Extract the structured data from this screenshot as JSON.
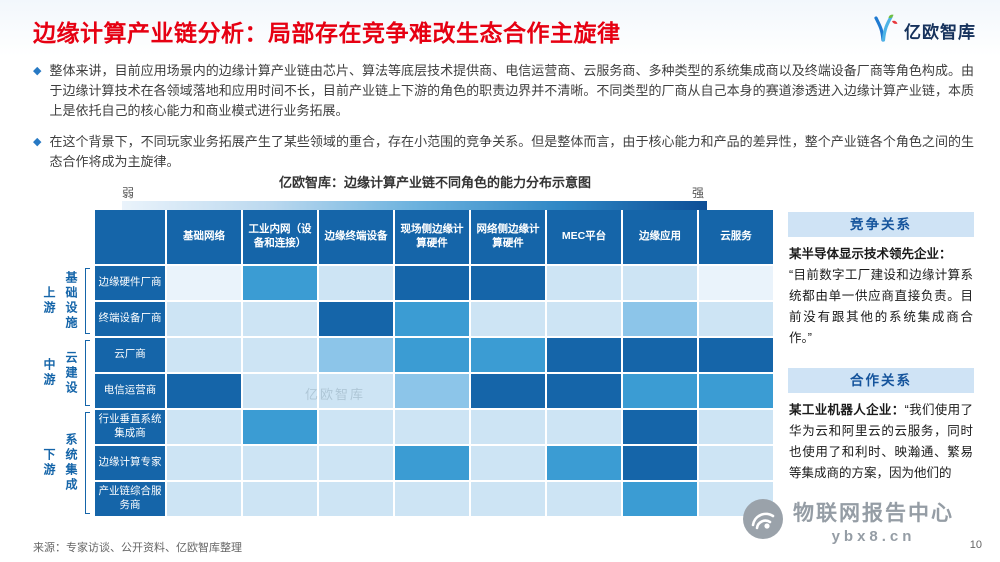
{
  "header": {
    "title": "边缘计算产业链分析：局部存在竞争难改生态合作主旋律",
    "logo_text": "亿欧智库"
  },
  "bullets": [
    {
      "text": "整体来讲，目前应用场景内的边缘计算产业链由芯片、算法等底层技术提供商、电信运营商、云服务商、多种类型的系统集成商以及终端设备厂商等角色构成。由于边缘计算技术在各领域落地和应用时间不长，目前产业链上下游的角色的职责边界并不清晰。不同类型的厂商从自己本身的赛道渗透进入边缘计算产业链，本质上是依托自己的核心能力和商业模式进行业务拓展。"
    },
    {
      "text": "在这个背景下，不同玩家业务拓展产生了某些领域的重合，存在小范围的竞争关系。但是整体而言，由于核心能力和产品的差异性，整个产业链各个角色之间的生态合作将成为主旋律。"
    }
  ],
  "chart": {
    "title": "亿欧智库：边缘计算产业链不同角色的能力分布示意图",
    "legend_weak": "弱",
    "legend_strong": "强",
    "inline_watermark": "亿欧智库"
  },
  "chart_data": {
    "type": "heatmap",
    "title": "亿欧智库：边缘计算产业链不同角色的能力分布示意图",
    "legend": {
      "left_label": "弱",
      "right_label": "强",
      "meaning": "颜色由浅到深表示能力由弱到强"
    },
    "columns": [
      "基础网络",
      "工业内网（设备和连接）",
      "边缘终端设备",
      "现场侧边缘计算硬件",
      "网络侧边缘计算硬件",
      "MEC平台",
      "边缘应用",
      "云服务"
    ],
    "rows": [
      "边缘硬件厂商",
      "终端设备厂商",
      "云厂商",
      "电信运营商",
      "行业垂直系统集成商",
      "边缘计算专家",
      "产业链综合服务商"
    ],
    "row_groups": [
      {
        "stage": "上游",
        "category": "基础设施",
        "rows": [
          "边缘硬件厂商",
          "终端设备厂商"
        ]
      },
      {
        "stage": "中游",
        "category": "云建设",
        "rows": [
          "云厂商",
          "电信运营商"
        ]
      },
      {
        "stage": "下游",
        "category": "系统集成",
        "rows": [
          "行业垂直系统集成商",
          "边缘计算专家",
          "产业链综合服务商"
        ]
      }
    ],
    "values": [
      [
        0,
        3,
        1,
        4,
        4,
        1,
        1,
        0
      ],
      [
        1,
        1,
        4,
        3,
        1,
        1,
        2,
        1
      ],
      [
        1,
        1,
        2,
        3,
        3,
        4,
        4,
        4
      ],
      [
        4,
        1,
        1,
        2,
        4,
        4,
        3,
        3
      ],
      [
        1,
        3,
        1,
        1,
        1,
        1,
        4,
        1
      ],
      [
        1,
        1,
        1,
        3,
        1,
        3,
        4,
        1
      ],
      [
        1,
        1,
        1,
        1,
        1,
        1,
        3,
        1
      ]
    ],
    "level_colors": [
      "#eaf3fb",
      "#cde4f4",
      "#8cc5e9",
      "#3b9cd3",
      "#1565a9"
    ]
  },
  "panels": [
    {
      "title": "竞争关系",
      "lead": "某半导体显示技术领先企业：",
      "quote": "“目前数字工厂建设和边缘计算系统都由单一供应商直接负责。目前没有跟其他的系统集成商合作。”"
    },
    {
      "title": "合作关系",
      "lead": "某工业机器人企业：",
      "quote": "“我们使用了华为云和阿里云的云服务，同时也使用了和利时、映瀚通、繁易等集成商的方案，因为他们的"
    }
  ],
  "watermark": {
    "name": "物联网报告中心",
    "domain": "ybx8.cn"
  },
  "footer": {
    "source": "来源：专家访谈、公开资料、亿欧智库整理",
    "page_number": "10"
  },
  "colors": {
    "title_red": "#e60012",
    "primary_blue": "#1565a9",
    "panel_header_bg": "#cfe3f5",
    "bullet_blue": "#2779c4"
  }
}
